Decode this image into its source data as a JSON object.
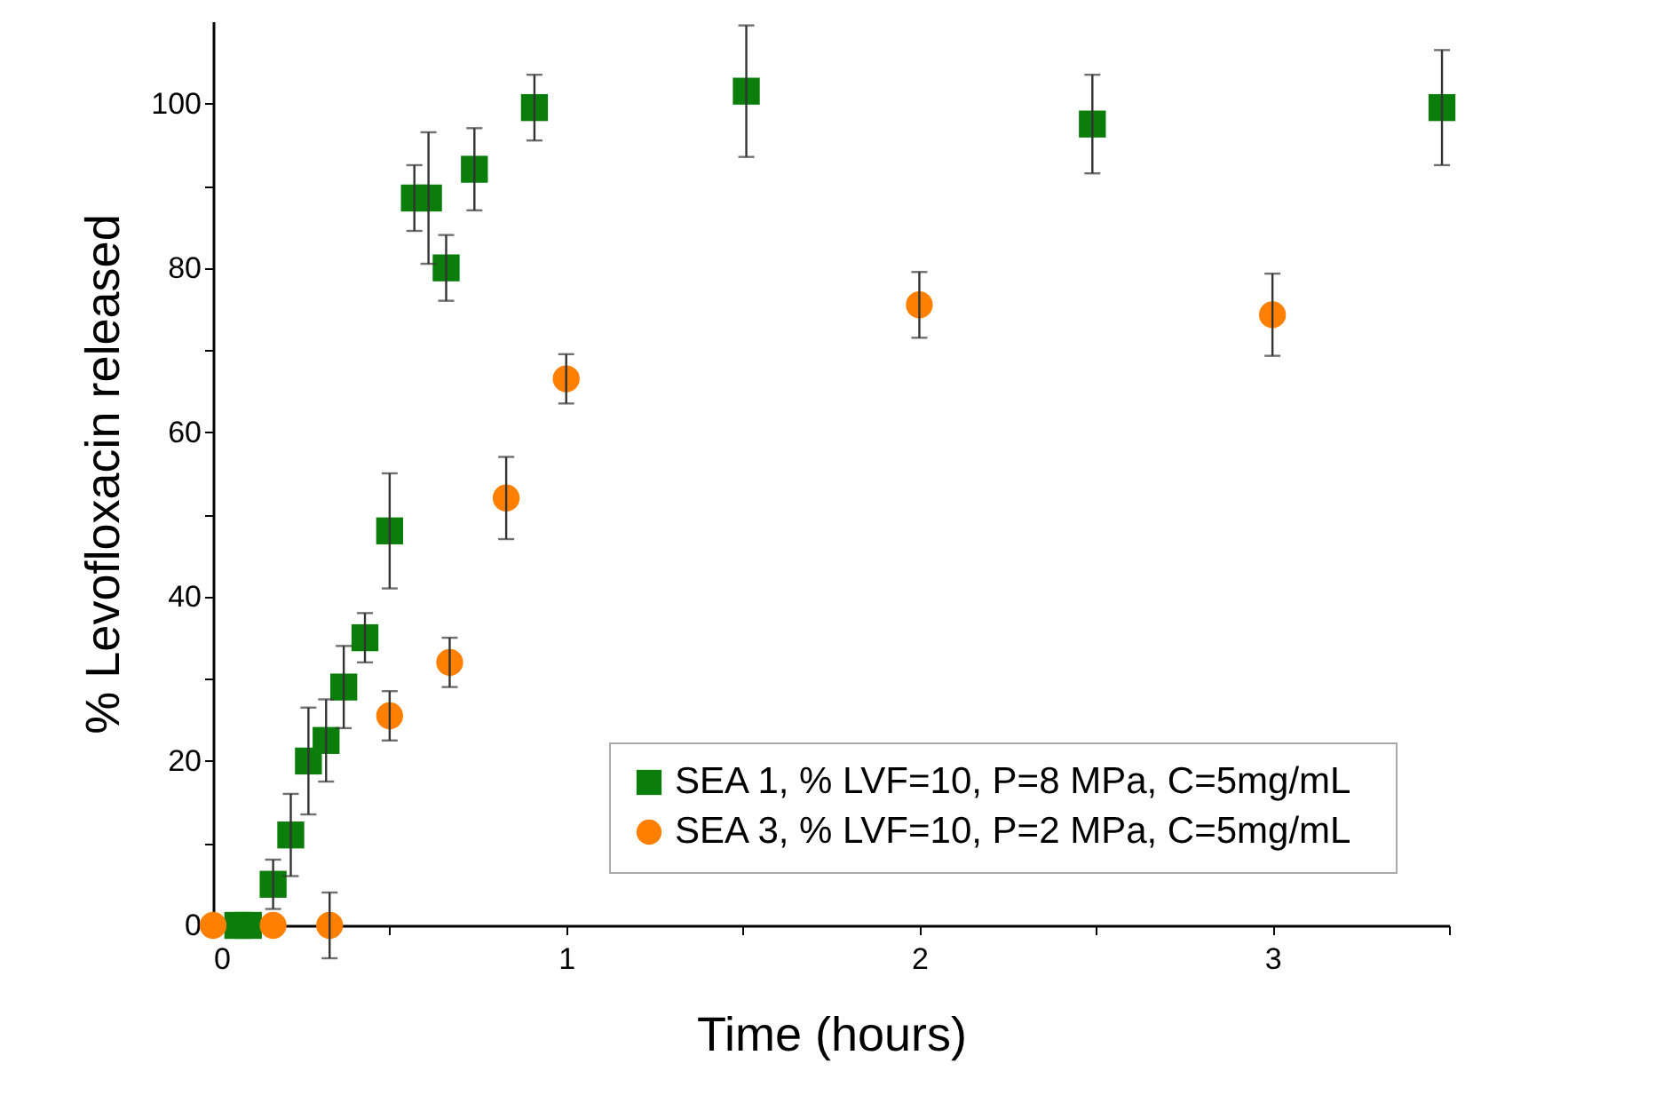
{
  "chart_data": {
    "type": "scatter",
    "xlabel": "Time (hours)",
    "ylabel": "% Levofloxacin released",
    "xlim": [
      0,
      3.5
    ],
    "ylim": [
      0,
      110
    ],
    "xticks": [
      0,
      {
        "value": 0.5,
        "label": null
      },
      1,
      {
        "value": 1.5,
        "label": null
      },
      2,
      {
        "value": 2.5,
        "label": null
      },
      3,
      {
        "value": 3.5,
        "label": null
      }
    ],
    "yticks": [
      0,
      {
        "value": 10,
        "label": null
      },
      20,
      {
        "value": 30,
        "label": null
      },
      40,
      {
        "value": 50,
        "label": null
      },
      60,
      {
        "value": 70,
        "label": null
      },
      80,
      {
        "value": 90,
        "label": null
      },
      100
    ],
    "legend": "bottom right",
    "grid": false,
    "series": [
      {
        "name": "SEA 1, % LVF=10,   P=8 MPa, C=5mg/mL",
        "color": "#0a7d0a",
        "marker": "square",
        "x": [
          0.07,
          0.1,
          0.17,
          0.22,
          0.27,
          0.32,
          0.37,
          0.43,
          0.5,
          0.57,
          0.61,
          0.66,
          0.74,
          0.91,
          1.51,
          2.49,
          3.48
        ],
        "values": [
          0,
          0,
          5,
          11,
          20,
          22.5,
          29,
          35,
          48,
          88.5,
          88.5,
          80,
          92,
          99.5,
          101.5,
          97.5,
          99.5
        ],
        "errors": [
          null,
          null,
          3,
          5,
          6.5,
          5,
          5,
          3,
          7,
          4,
          8,
          4,
          5,
          4,
          8,
          6,
          7
        ]
      },
      {
        "name": "SEA 3, % LVF=10,  P=2 MPa, C=5mg/mL",
        "color": "#ff8000",
        "marker": "circle",
        "x": [
          0,
          0.17,
          0.33,
          0.5,
          0.67,
          0.83,
          1,
          2,
          3
        ],
        "values": [
          0,
          0,
          0,
          25.5,
          32,
          52,
          66.5,
          75.5,
          74.3
        ],
        "errors": [
          null,
          null,
          4,
          3,
          3,
          5,
          3,
          4,
          5
        ]
      }
    ]
  }
}
